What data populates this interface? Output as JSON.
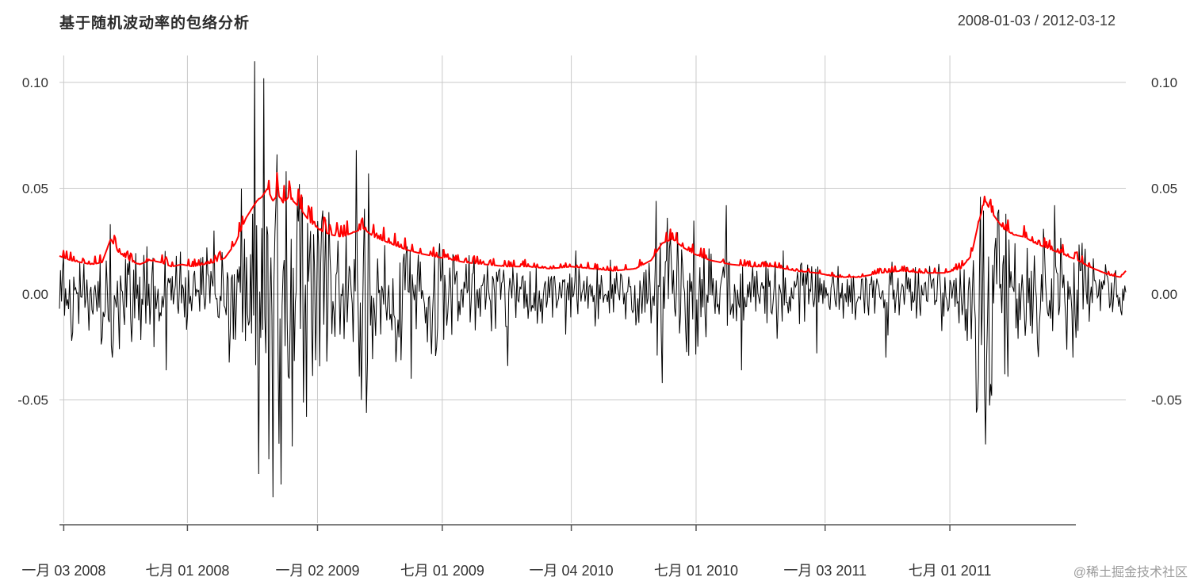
{
  "page": {
    "watermark": "@稀土掘金技术社区"
  },
  "chart_data": {
    "type": "line",
    "title": "基于随机波动率的包络分析",
    "date_range": "2008-01-03 / 2012-03-12",
    "xlabel": "",
    "ylabel": "",
    "ylim": [
      -0.1,
      0.11
    ],
    "grid": true,
    "legend": "none",
    "colors": {
      "returns": "#000000",
      "envelope": "#ff0000",
      "grid": "#c9c9c9",
      "axis": "#555555",
      "tick_text": "#333333"
    },
    "y_ticks": [
      {
        "label": "0.10",
        "value": 0.1
      },
      {
        "label": "0.05",
        "value": 0.05
      },
      {
        "label": "0.00",
        "value": 0.0
      },
      {
        "label": "-0.05",
        "value": -0.05
      }
    ],
    "x_ticks": [
      {
        "label": "一月 03 2008",
        "f": 0.004
      },
      {
        "label": "七月 01 2008",
        "f": 0.12
      },
      {
        "label": "一月 02 2009",
        "f": 0.242
      },
      {
        "label": "七月 01 2009",
        "f": 0.359
      },
      {
        "label": "一月 04 2010",
        "f": 0.48
      },
      {
        "label": "七月 01 2010",
        "f": 0.597
      },
      {
        "label": "一月 03 2011",
        "f": 0.718
      },
      {
        "label": "七月 01 2011",
        "f": 0.835
      }
    ],
    "n_points": 1050,
    "noise_seed": 123457,
    "series": [
      {
        "name": "returns",
        "color": "#000000",
        "extremes": [
          [
            0.048,
            0.033
          ],
          [
            0.05,
            -0.03
          ],
          [
            0.1,
            -0.036
          ],
          [
            0.145,
            0.03
          ],
          [
            0.183,
            0.11
          ],
          [
            0.187,
            -0.085
          ],
          [
            0.192,
            0.102
          ],
          [
            0.196,
            -0.078
          ],
          [
            0.2,
            -0.096
          ],
          [
            0.204,
            0.066
          ],
          [
            0.208,
            -0.09
          ],
          [
            0.213,
            0.058
          ],
          [
            0.218,
            -0.072
          ],
          [
            0.225,
            0.052
          ],
          [
            0.232,
            -0.058
          ],
          [
            0.278,
            0.068
          ],
          [
            0.283,
            -0.05
          ],
          [
            0.29,
            0.057
          ],
          [
            0.33,
            -0.04
          ],
          [
            0.42,
            -0.034
          ],
          [
            0.56,
            0.044
          ],
          [
            0.565,
            -0.042
          ],
          [
            0.57,
            0.036
          ],
          [
            0.625,
            0.042
          ],
          [
            0.64,
            -0.036
          ],
          [
            0.71,
            -0.028
          ],
          [
            0.775,
            -0.03
          ],
          [
            0.86,
            -0.056
          ],
          [
            0.864,
            0.046
          ],
          [
            0.868,
            -0.071
          ],
          [
            0.874,
            -0.048
          ],
          [
            0.88,
            0.038
          ],
          [
            0.933,
            0.042
          ],
          [
            0.95,
            -0.03
          ]
        ]
      },
      {
        "name": "envelope",
        "color": "#ff0000",
        "points": [
          [
            0.0,
            0.018
          ],
          [
            0.01,
            0.016
          ],
          [
            0.02,
            0.015
          ],
          [
            0.03,
            0.014
          ],
          [
            0.04,
            0.015
          ],
          [
            0.048,
            0.026
          ],
          [
            0.055,
            0.02
          ],
          [
            0.065,
            0.016
          ],
          [
            0.075,
            0.014
          ],
          [
            0.085,
            0.016
          ],
          [
            0.095,
            0.015
          ],
          [
            0.105,
            0.013
          ],
          [
            0.115,
            0.014
          ],
          [
            0.125,
            0.013
          ],
          [
            0.135,
            0.014
          ],
          [
            0.145,
            0.015
          ],
          [
            0.155,
            0.017
          ],
          [
            0.165,
            0.024
          ],
          [
            0.175,
            0.036
          ],
          [
            0.185,
            0.044
          ],
          [
            0.19,
            0.046
          ],
          [
            0.195,
            0.05
          ],
          [
            0.2,
            0.044
          ],
          [
            0.205,
            0.047
          ],
          [
            0.21,
            0.043
          ],
          [
            0.215,
            0.046
          ],
          [
            0.225,
            0.041
          ],
          [
            0.235,
            0.034
          ],
          [
            0.245,
            0.03
          ],
          [
            0.255,
            0.028
          ],
          [
            0.265,
            0.027
          ],
          [
            0.275,
            0.029
          ],
          [
            0.285,
            0.031
          ],
          [
            0.295,
            0.027
          ],
          [
            0.305,
            0.025
          ],
          [
            0.315,
            0.023
          ],
          [
            0.325,
            0.021
          ],
          [
            0.34,
            0.019
          ],
          [
            0.36,
            0.017
          ],
          [
            0.38,
            0.015
          ],
          [
            0.4,
            0.014
          ],
          [
            0.42,
            0.013
          ],
          [
            0.44,
            0.013
          ],
          [
            0.46,
            0.012
          ],
          [
            0.48,
            0.013
          ],
          [
            0.5,
            0.012
          ],
          [
            0.52,
            0.011
          ],
          [
            0.54,
            0.012
          ],
          [
            0.555,
            0.016
          ],
          [
            0.565,
            0.024
          ],
          [
            0.575,
            0.026
          ],
          [
            0.585,
            0.022
          ],
          [
            0.595,
            0.019
          ],
          [
            0.61,
            0.016
          ],
          [
            0.63,
            0.014
          ],
          [
            0.65,
            0.013
          ],
          [
            0.67,
            0.013
          ],
          [
            0.69,
            0.011
          ],
          [
            0.71,
            0.01
          ],
          [
            0.73,
            0.008
          ],
          [
            0.75,
            0.008
          ],
          [
            0.77,
            0.01
          ],
          [
            0.79,
            0.011
          ],
          [
            0.81,
            0.01
          ],
          [
            0.83,
            0.01
          ],
          [
            0.845,
            0.012
          ],
          [
            0.855,
            0.018
          ],
          [
            0.862,
            0.034
          ],
          [
            0.868,
            0.044
          ],
          [
            0.875,
            0.038
          ],
          [
            0.885,
            0.031
          ],
          [
            0.895,
            0.028
          ],
          [
            0.905,
            0.027
          ],
          [
            0.915,
            0.024
          ],
          [
            0.925,
            0.022
          ],
          [
            0.935,
            0.02
          ],
          [
            0.945,
            0.018
          ],
          [
            0.955,
            0.016
          ],
          [
            0.965,
            0.013
          ],
          [
            0.975,
            0.011
          ],
          [
            0.985,
            0.009
          ],
          [
            0.995,
            0.008
          ],
          [
            1.0,
            0.011
          ]
        ]
      }
    ]
  }
}
